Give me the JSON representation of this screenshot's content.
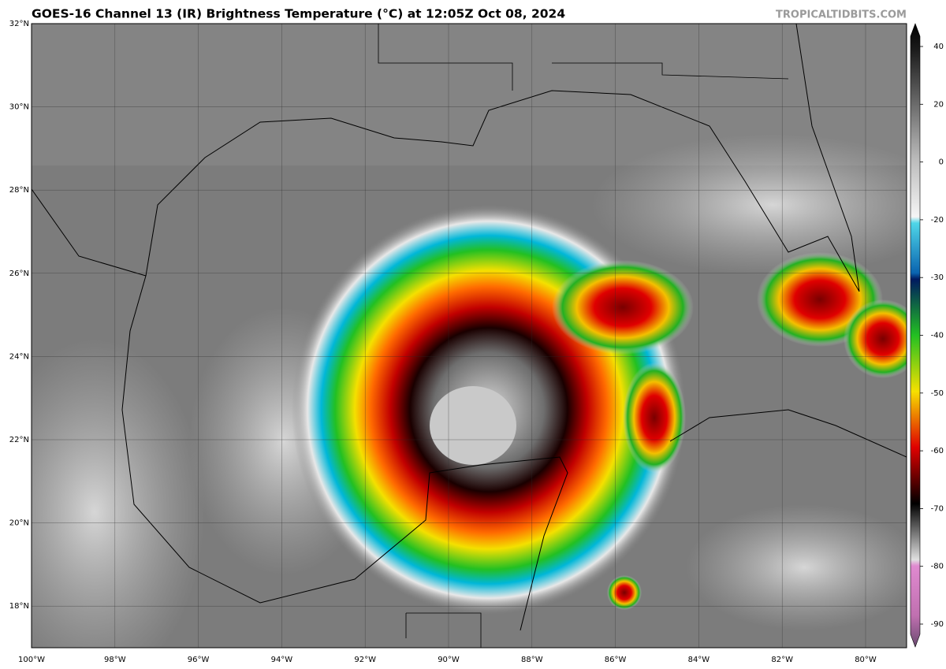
{
  "header": {
    "title": "GOES-16 Channel 13 (IR) Brightness Temperature (°C) at 12:05Z Oct 08, 2024",
    "credit": "TROPICALTIDBITS.COM"
  },
  "map": {
    "lat_labels": [
      "32°N",
      "30°N",
      "28°N",
      "26°N",
      "24°N",
      "22°N",
      "20°N",
      "18°N"
    ],
    "lon_labels": [
      "100°W",
      "98°W",
      "96°W",
      "94°W",
      "92°W",
      "90°W",
      "88°W",
      "86°W",
      "84°W",
      "82°W",
      "80°W"
    ]
  },
  "colorbar": {
    "ticks": [
      40,
      20,
      0,
      -20,
      -30,
      -40,
      -50,
      -60,
      -70,
      -80,
      -90
    ]
  }
}
